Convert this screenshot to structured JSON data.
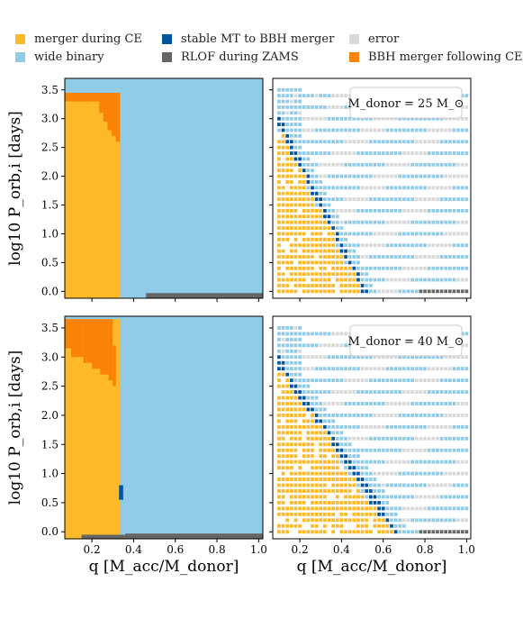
{
  "colors": {
    "merger_ce": "#fdb927",
    "wide": "#90cbe8",
    "stable_mt": "#0055a3",
    "rlof": "#666666",
    "error": "#d9d9d9",
    "bbh_ce": "#f98207"
  },
  "legend": [
    {
      "key": "merger_ce",
      "label": "merger during CE"
    },
    {
      "key": "wide",
      "label": "wide binary"
    },
    {
      "key": "stable_mt",
      "label": "stable MT to BBH merger"
    },
    {
      "key": "rlof",
      "label": "RLOF during ZAMS"
    },
    {
      "key": "error",
      "label": "error"
    },
    {
      "key": "bbh_ce",
      "label": "BBH merger following CE"
    }
  ],
  "chart_data": [
    {
      "type": "heatmap",
      "panel": "top-left",
      "annotation": "",
      "ylabel": "log10 P_orb,i [days]",
      "xlabel": "",
      "xlim": [
        0.07,
        1.02
      ],
      "ylim": [
        -0.12,
        3.7
      ],
      "yticks": [
        "0.0",
        "0.5",
        "1.0",
        "1.5",
        "2.0",
        "2.5",
        "3.0",
        "3.5"
      ],
      "xticks": []
    },
    {
      "type": "heatmap",
      "panel": "top-right",
      "annotation": "M_donor = 25 M_⊙",
      "xlim": [
        0.07,
        1.02
      ],
      "ylim": [
        -0.12,
        3.7
      ]
    },
    {
      "type": "heatmap",
      "panel": "bottom-left",
      "annotation": "",
      "ylabel": "log10 P_orb,i [days]",
      "xlabel": "q [M_acc/M_donor]",
      "xlim": [
        0.07,
        1.02
      ],
      "ylim": [
        -0.12,
        3.7
      ],
      "yticks": [
        "0.0",
        "0.5",
        "1.0",
        "1.5",
        "2.0",
        "2.5",
        "3.0",
        "3.5"
      ],
      "xticks": [
        "0.2",
        "0.4",
        "0.6",
        "0.8",
        "1.0"
      ]
    },
    {
      "type": "heatmap",
      "panel": "bottom-right",
      "annotation": "M_donor = 40 M_⊙",
      "xlabel": "q [M_acc/M_donor]",
      "xlim": [
        0.07,
        1.02
      ],
      "ylim": [
        -0.12,
        3.7
      ],
      "xticks": [
        "0.2",
        "0.4",
        "0.6",
        "0.8",
        "1.0"
      ]
    }
  ]
}
